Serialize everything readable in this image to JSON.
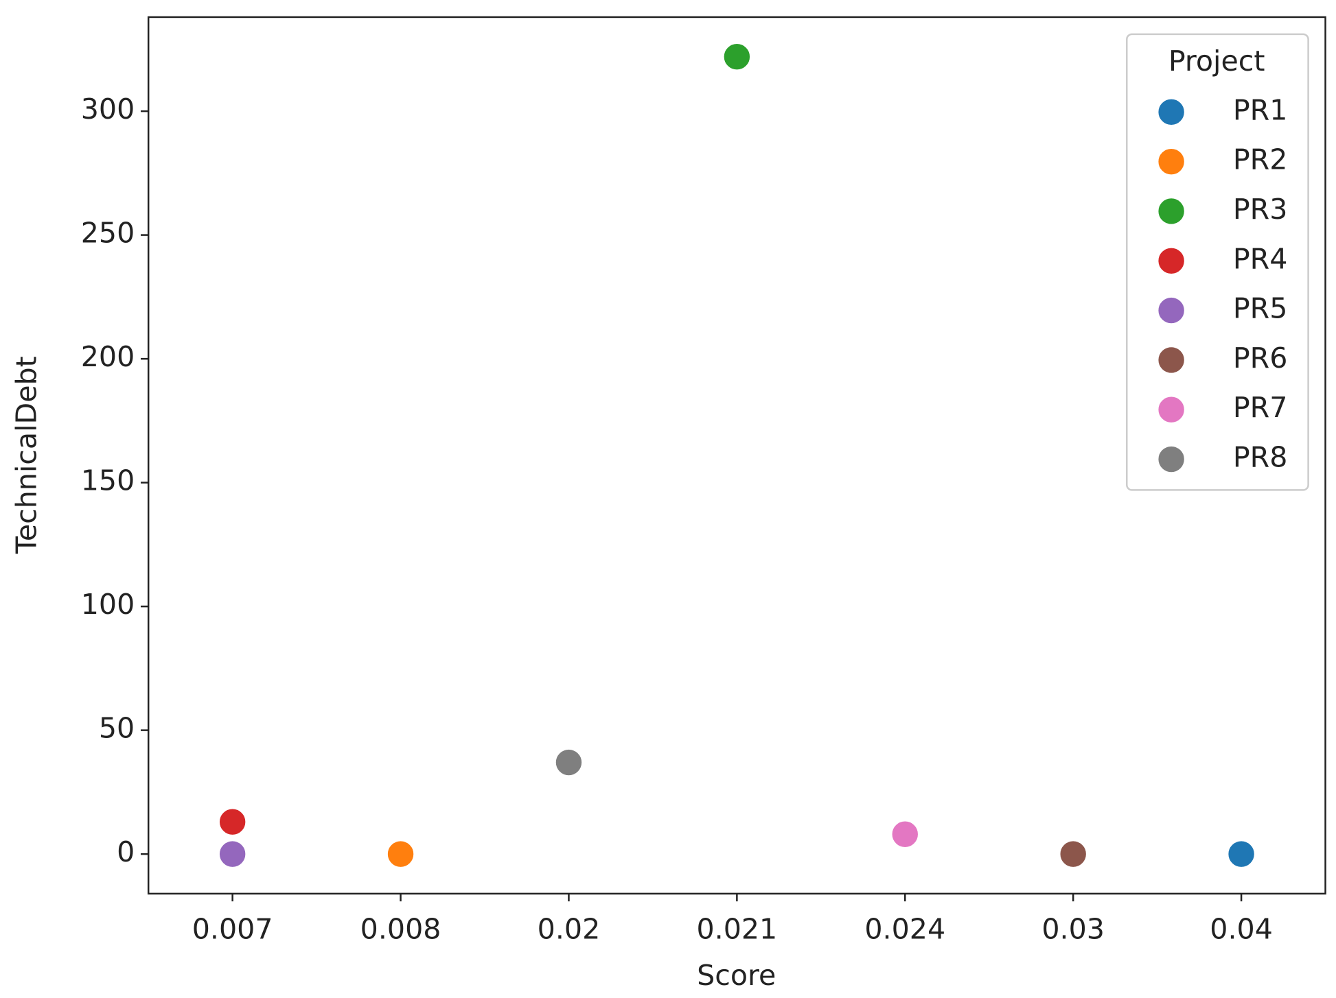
{
  "chart_data": {
    "type": "scatter",
    "x_label": "Score",
    "y_label": "TechnicalDebt",
    "legend_title": "Project",
    "legend_position": "upper right",
    "categories": [
      "0.007",
      "0.008",
      "0.02",
      "0.021",
      "0.024",
      "0.03",
      "0.04"
    ],
    "ylim": [
      -16,
      338
    ],
    "yticks": [
      0,
      50,
      100,
      150,
      200,
      250,
      300
    ],
    "grid": false,
    "series": [
      {
        "name": "PR1",
        "color": "#1f77b4",
        "x": [
          "0.04"
        ],
        "values": [
          0
        ]
      },
      {
        "name": "PR2",
        "color": "#ff7f0e",
        "x": [
          "0.008"
        ],
        "values": [
          0
        ]
      },
      {
        "name": "PR3",
        "color": "#2ca02c",
        "x": [
          "0.021"
        ],
        "values": [
          322
        ]
      },
      {
        "name": "PR4",
        "color": "#d62728",
        "x": [
          "0.007"
        ],
        "values": [
          13
        ]
      },
      {
        "name": "PR5",
        "color": "#9467bd",
        "x": [
          "0.007"
        ],
        "values": [
          0
        ]
      },
      {
        "name": "PR6",
        "color": "#8c564b",
        "x": [
          "0.03"
        ],
        "values": [
          0
        ]
      },
      {
        "name": "PR7",
        "color": "#e377c2",
        "x": [
          "0.024"
        ],
        "values": [
          8
        ]
      },
      {
        "name": "PR8",
        "color": "#7f7f7f",
        "x": [
          "0.02"
        ],
        "values": [
          37
        ]
      }
    ]
  }
}
